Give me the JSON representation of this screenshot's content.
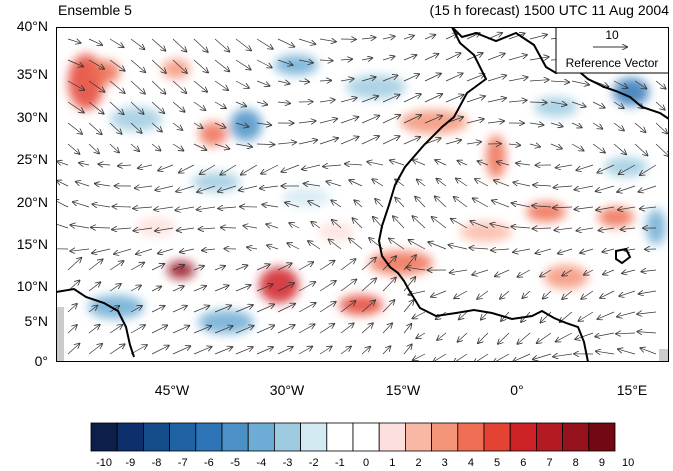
{
  "header": {
    "title_left": "Ensemble 5",
    "title_right": "(15 h forecast) 1500 UTC 11 Aug 2004"
  },
  "map": {
    "lat_labels": [
      "40°N",
      "35°N",
      "30°N",
      "25°N",
      "20°N",
      "15°N",
      "10°N",
      "5°N",
      "0°"
    ],
    "lon_labels": [
      "45°W",
      "30°W",
      "15°W",
      "0°",
      "15°E"
    ],
    "lat_range": [
      0,
      40
    ],
    "lon_range": [
      -60,
      20
    ],
    "reference_vector": {
      "magnitude": "10",
      "label": "Reference Vector"
    }
  },
  "colorbar": {
    "labels": [
      "-10",
      "-9",
      "-8",
      "-7",
      "-6",
      "-5",
      "-4",
      "-3",
      "-2",
      "-1",
      "0",
      "1",
      "2",
      "3",
      "4",
      "5",
      "6",
      "7",
      "8",
      "9",
      "10"
    ],
    "colors": [
      "#0b1f4a",
      "#0d2f6b",
      "#154c8a",
      "#1f63a4",
      "#2d75b6",
      "#4b91c6",
      "#6dacd4",
      "#9fcbe0",
      "#d3eaf3",
      "#ffffff",
      "#ffffff",
      "#fde0dd",
      "#f9b8a6",
      "#f49478",
      "#ef6e53",
      "#e44333",
      "#cf2226",
      "#b41a22",
      "#96121c",
      "#720812"
    ]
  }
}
